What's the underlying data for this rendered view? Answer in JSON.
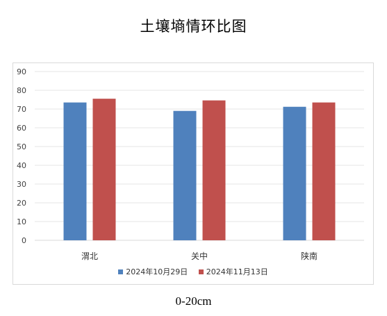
{
  "chart_data": {
    "type": "bar",
    "title": "土壤墒情环比图",
    "categories": [
      "渭北",
      "关中",
      "陕南"
    ],
    "series": [
      {
        "name": "2024年10月29日",
        "values": [
          73.5,
          69,
          71.2
        ],
        "color": "#4f81bd"
      },
      {
        "name": "2024年11月13日",
        "values": [
          75.5,
          74.6,
          73.5
        ],
        "color": "#c0504d"
      }
    ],
    "ylim": [
      0,
      90
    ],
    "yticks": [
      "0",
      "10",
      "20",
      "30",
      "40",
      "50",
      "60",
      "70",
      "80",
      "90"
    ],
    "grid": true,
    "legend_position": "bottom",
    "caption": "0-20cm"
  }
}
